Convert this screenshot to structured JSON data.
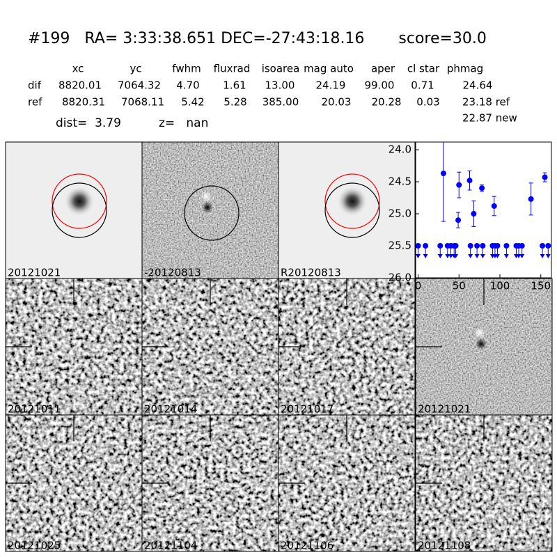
{
  "header": {
    "title": "#199   RA= 3:33:38.651 DEC=-27:43:18.16       score=30.0"
  },
  "table": {
    "columns": [
      "xc",
      "yc",
      "fwhm",
      "fluxrad",
      "isoarea",
      "mag auto",
      "aper",
      "cl star",
      "phmag"
    ],
    "rows": [
      {
        "label": "dif",
        "cells": [
          "8820.01",
          "7064.32",
          "4.70",
          "1.61",
          "13.00",
          "24.19",
          "99.00",
          "0.71",
          "24.64"
        ]
      },
      {
        "label": "ref",
        "cells": [
          "8820.31",
          "7068.11",
          "5.42",
          "5.28",
          "385.00",
          "20.03",
          "20.28",
          "0.03",
          "23.18 ref"
        ]
      }
    ],
    "extra": "22.87 new"
  },
  "info": {
    "dist": "dist=  3.79",
    "z": "z=   nan"
  },
  "panels": [
    {
      "label": "20121021"
    },
    {
      "label": "-20120813"
    },
    {
      "label": "R20120813"
    },
    {
      "label": "20121011"
    },
    {
      "label": "20121014"
    },
    {
      "label": "20121017"
    },
    {
      "label": "20121021",
      "color": "#ff0000"
    },
    {
      "label": "20121025"
    },
    {
      "label": "20121104"
    },
    {
      "label": "20121106"
    },
    {
      "label": "20121108"
    }
  ],
  "chart_data": {
    "type": "scatter",
    "xlim": [
      -3,
      163
    ],
    "xticks": [
      0,
      50,
      100,
      150
    ],
    "ylim": [
      26.0,
      23.88
    ],
    "yticks": [
      {
        "value": 24,
        "label": "24.0"
      },
      24.5,
      {
        "value": 25,
        "label": "25.0"
      },
      25.5,
      {
        "value": 26,
        "label": "26.0"
      }
    ],
    "series": [
      {
        "color": "#0000ff",
        "x": [
          31,
          49,
          50,
          63,
          68,
          78,
          93,
          138,
          155
        ],
        "values": [
          24.37,
          25.1,
          24.55,
          24.48,
          25.0,
          24.6,
          24.88,
          24.77,
          24.43
        ],
        "errors": [
          0.75,
          0.12,
          0.2,
          0.15,
          0.2,
          0.05,
          0.15,
          0.25,
          0.07
        ]
      },
      {
        "color": "#0000ff",
        "marker": "upper-limit",
        "x": [
          0,
          9,
          27,
          36,
          40,
          44,
          46,
          64,
          72,
          79,
          91,
          94,
          97,
          108,
          120,
          123,
          127,
          152,
          159
        ],
        "values": [
          25.5,
          25.5,
          25.5,
          25.5,
          25.5,
          25.5,
          25.5,
          25.5,
          25.5,
          25.5,
          25.5,
          25.5,
          25.5,
          25.5,
          25.5,
          25.5,
          25.5,
          25.5,
          25.5
        ]
      }
    ]
  }
}
